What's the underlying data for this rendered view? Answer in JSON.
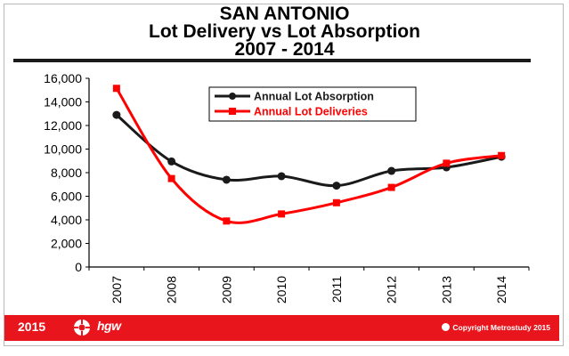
{
  "title_lines": [
    "SAN ANTONIO",
    "Lot Delivery vs Lot Absorption",
    "2007 - 2014"
  ],
  "chart_data": {
    "type": "line",
    "title": "SAN ANTONIO Lot Delivery vs Lot Absorption 2007 - 2014",
    "categories": [
      "2007",
      "2008",
      "2009",
      "2010",
      "2011",
      "2012",
      "2013",
      "2014"
    ],
    "ylim": [
      0,
      16000
    ],
    "yticks": [
      0,
      2000,
      4000,
      6000,
      8000,
      10000,
      12000,
      14000,
      16000
    ],
    "ytick_labels": [
      "0",
      "2,000",
      "4,000",
      "6,000",
      "8,000",
      "10,000",
      "12,000",
      "14,000",
      "16,000"
    ],
    "grid": false,
    "legend_position": "top-center",
    "series": [
      {
        "name": "Annual Lot Absorption",
        "color": "#1a1a1a",
        "marker": "circle",
        "values": [
          12900,
          8950,
          7400,
          7700,
          6900,
          8150,
          8450,
          9350
        ]
      },
      {
        "name": "Annual Lot Deliveries",
        "color": "#ff0000",
        "marker": "square",
        "values": [
          15150,
          7500,
          3900,
          4500,
          5450,
          6750,
          8800,
          9450
        ]
      }
    ]
  },
  "footer": {
    "year": "2015",
    "logo_text": "hgw",
    "copyright": "Copyright Metrostudy 2015",
    "color": "#e8161c"
  }
}
